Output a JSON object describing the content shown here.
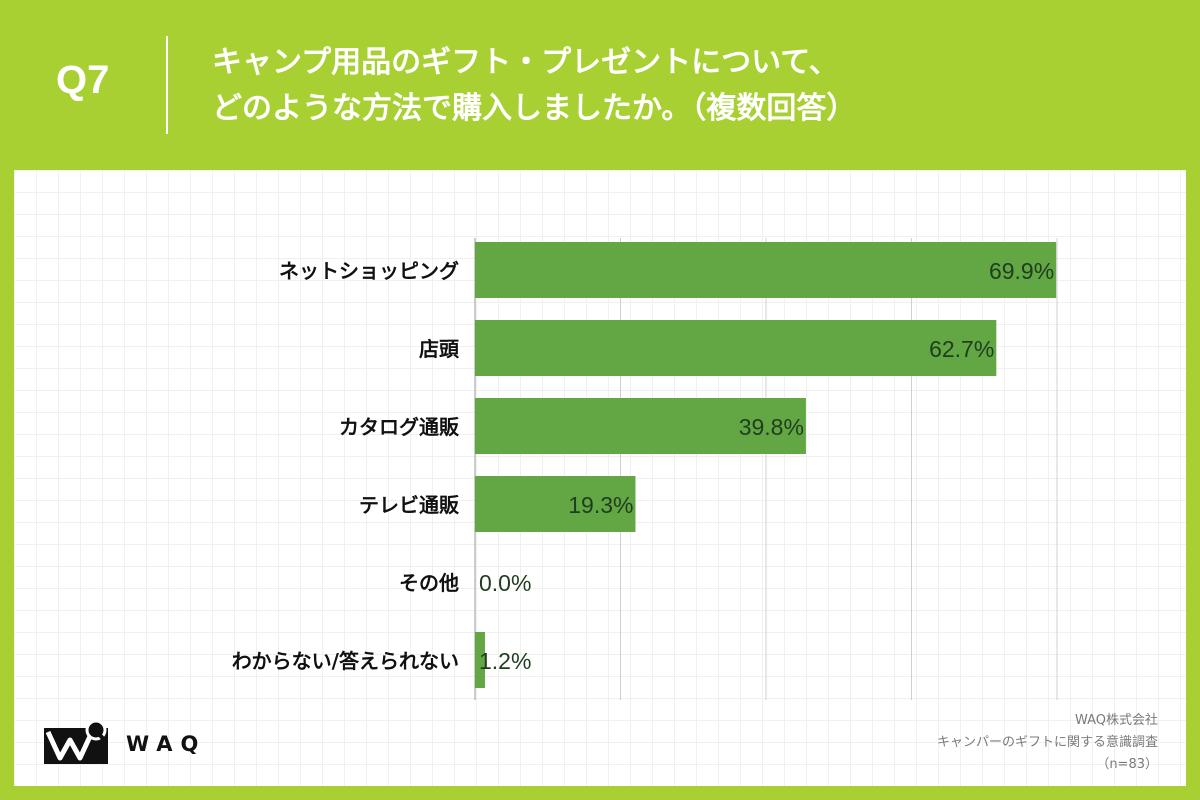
{
  "header": {
    "question_number": "Q7",
    "title_line1": "キャンプ用品のギフト・プレゼントについて、",
    "title_line2": "どのような方法で購入しましたか。（複数回答）"
  },
  "chart_data": {
    "type": "bar",
    "orientation": "horizontal",
    "categories": [
      "ネットショッピング",
      "店頭",
      "カタログ通販",
      "テレビ通販",
      "その他",
      "わからない/答えられない"
    ],
    "values": [
      69.9,
      62.7,
      39.8,
      19.3,
      0.0,
      1.2
    ],
    "value_labels": [
      "69.9%",
      "62.7%",
      "39.8%",
      "19.3%",
      "0.0%",
      "1.2%"
    ],
    "xlim": [
      0,
      70
    ],
    "gridlines": [
      0,
      17.5,
      35,
      52.5,
      70
    ],
    "unit": "%",
    "bar_color": "#62a744",
    "label_color": "#1f3d1f"
  },
  "footer": {
    "logo_text": "WAQ",
    "source_company": "WAQ株式会社",
    "source_survey": "キャンパーのギフトに関する意識調査",
    "source_n": "（n=83）"
  },
  "colors": {
    "background": "#a8d033",
    "card": "#ffffff",
    "grid": "#d0d0d0"
  }
}
